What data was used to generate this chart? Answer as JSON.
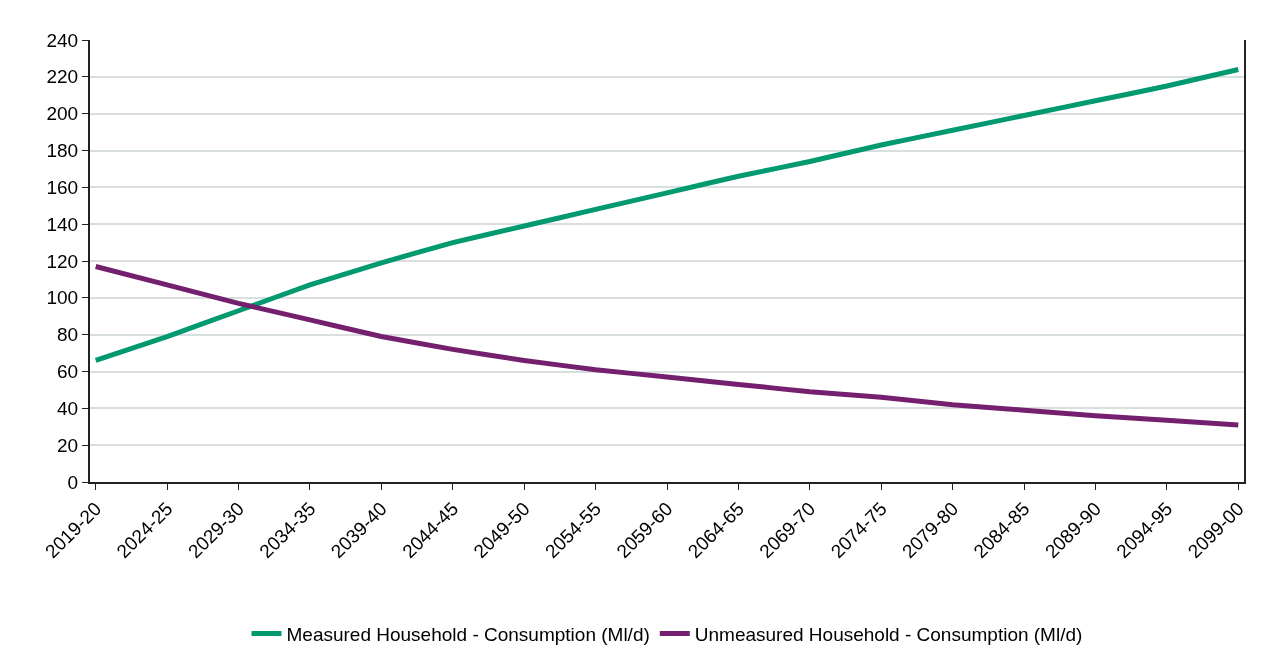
{
  "chart_data": {
    "type": "line",
    "categories": [
      "2019-20",
      "2024-25",
      "2029-30",
      "2034-35",
      "2039-40",
      "2044-45",
      "2049-50",
      "2054-55",
      "2059-60",
      "2064-65",
      "2069-70",
      "2074-75",
      "2079-80",
      "2084-85",
      "2089-90",
      "2094-95",
      "2099-00"
    ],
    "series": [
      {
        "name": "Measured Household - Consumption (Ml/d)",
        "color": "#009970",
        "values": [
          66,
          79,
          93,
          107,
          119,
          130,
          139,
          148,
          157,
          166,
          174,
          183,
          191,
          199,
          207,
          215,
          224
        ]
      },
      {
        "name": "Unmeasured Household - Consumption (Ml/d)",
        "color": "#74206e",
        "values": [
          117,
          107,
          97,
          88,
          79,
          72,
          66,
          61,
          57,
          53,
          49,
          46,
          42,
          39,
          36,
          33.5,
          31
        ]
      }
    ],
    "ylim": [
      0,
      240
    ],
    "yticks": [
      0,
      20,
      40,
      60,
      80,
      100,
      120,
      140,
      160,
      180,
      200,
      220,
      240
    ],
    "grid": "y",
    "legend": "bottom",
    "marker": "none",
    "line_style": "solid"
  }
}
